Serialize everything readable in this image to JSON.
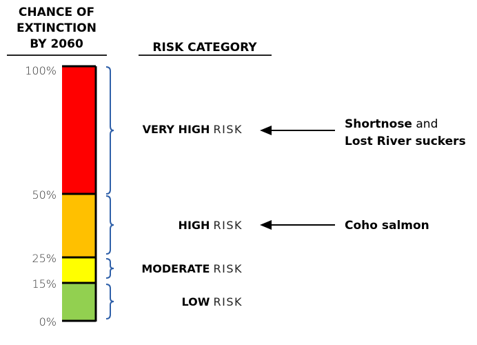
{
  "headers": {
    "chance": [
      "CHANCE OF",
      "EXTINCTION",
      "BY 2060"
    ],
    "risk": "RISK CATEGORY"
  },
  "ticks": [
    "100%",
    "50%",
    "25%",
    "15%",
    "0%"
  ],
  "segments": [
    {
      "from": 50,
      "to": 100,
      "color": "#ff0000",
      "label_bold": "VERY HIGH",
      "label_rest": "RISK"
    },
    {
      "from": 25,
      "to": 50,
      "color": "#ffc000",
      "label_bold": "HIGH",
      "label_rest": "RISK"
    },
    {
      "from": 15,
      "to": 25,
      "color": "#ffff00",
      "label_bold": "MODERATE",
      "label_rest": "RISK"
    },
    {
      "from": 0,
      "to": 15,
      "color": "#92d050",
      "label_bold": "LOW",
      "label_rest": "RISK"
    }
  ],
  "brace_color": "#2e5fa8",
  "species": [
    {
      "lines": [
        {
          "bold": "Shortnose",
          "rest": " and"
        },
        {
          "bold": "Lost River suckers",
          "rest": ""
        }
      ],
      "category": "VERY HIGH"
    },
    {
      "lines": [
        {
          "bold": "Coho salmon",
          "rest": ""
        }
      ],
      "category": "HIGH"
    }
  ]
}
